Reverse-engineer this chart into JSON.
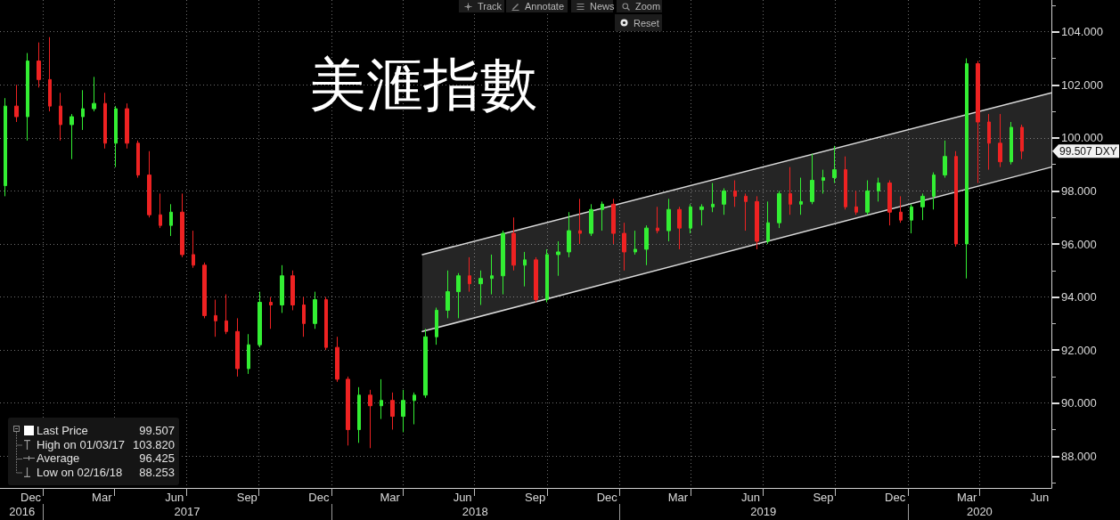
{
  "chart_data": {
    "type": "candlestick",
    "title": "美滙指數",
    "series": [
      {
        "x": [
          "2016-11-14",
          "2016-11-28",
          "2016-12-12",
          "2016-12-26",
          "2017-01-09",
          "2017-01-23",
          "2017-02-06",
          "2017-02-20",
          "2017-03-06",
          "2017-03-20",
          "2017-04-03",
          "2017-04-17",
          "2017-05-01",
          "2017-05-15",
          "2017-05-29",
          "2017-06-12",
          "2017-06-26",
          "2017-07-10",
          "2017-07-24",
          "2017-08-07",
          "2017-08-21",
          "2017-09-04",
          "2017-09-18",
          "2017-10-02",
          "2017-10-16",
          "2017-10-30",
          "2017-11-13",
          "2017-11-27",
          "2017-12-11",
          "2017-12-25",
          "2018-01-08",
          "2018-01-22",
          "2018-02-05",
          "2018-02-19",
          "2018-03-05",
          "2018-03-19",
          "2018-04-02",
          "2018-04-16",
          "2018-04-30",
          "2018-05-14",
          "2018-05-28",
          "2018-06-11",
          "2018-06-25",
          "2018-07-09",
          "2018-07-23",
          "2018-08-06",
          "2018-08-20",
          "2018-09-03",
          "2018-09-17",
          "2018-10-01",
          "2018-10-15",
          "2018-10-29",
          "2018-11-12",
          "2018-11-26",
          "2018-12-10",
          "2018-12-24",
          "2019-01-07",
          "2019-01-21",
          "2019-02-04",
          "2019-02-18",
          "2019-03-04",
          "2019-03-18",
          "2019-04-01",
          "2019-04-15",
          "2019-04-29",
          "2019-05-13",
          "2019-05-27",
          "2019-06-10",
          "2019-06-24",
          "2019-07-08",
          "2019-07-22",
          "2019-08-05",
          "2019-08-19",
          "2019-09-02",
          "2019-09-16",
          "2019-09-30",
          "2019-10-14",
          "2019-10-28",
          "2019-11-11",
          "2019-11-25",
          "2019-12-09",
          "2019-12-23",
          "2020-01-06",
          "2020-01-20",
          "2020-02-03",
          "2020-02-17",
          "2020-03-02",
          "2020-03-16",
          "2020-03-30",
          "2020-04-13",
          "2020-04-27",
          "2020-05-11",
          "2020-05-25"
        ],
        "ohlc": [
          [
            98.2,
            101.5,
            97.8,
            101.2
          ],
          [
            101.2,
            102.0,
            100.6,
            100.8
          ],
          [
            100.8,
            103.2,
            99.9,
            102.9
          ],
          [
            102.9,
            103.6,
            101.9,
            102.2
          ],
          [
            102.2,
            103.8,
            101.0,
            101.2
          ],
          [
            101.2,
            101.7,
            99.9,
            100.5
          ],
          [
            100.5,
            100.9,
            99.2,
            100.8
          ],
          [
            100.8,
            101.8,
            100.3,
            101.1
          ],
          [
            101.1,
            102.3,
            101.0,
            101.3
          ],
          [
            101.3,
            101.7,
            99.6,
            99.8
          ],
          [
            99.8,
            101.2,
            98.9,
            101.1
          ],
          [
            101.1,
            101.3,
            99.6,
            99.8
          ],
          [
            99.8,
            99.9,
            98.5,
            98.6
          ],
          [
            98.6,
            99.5,
            97.0,
            97.1
          ],
          [
            97.1,
            97.9,
            96.6,
            96.7
          ],
          [
            96.7,
            97.5,
            96.3,
            97.2
          ],
          [
            97.2,
            97.9,
            95.5,
            95.6
          ],
          [
            95.6,
            96.5,
            95.1,
            95.2
          ],
          [
            95.2,
            95.3,
            93.2,
            93.3
          ],
          [
            93.3,
            93.9,
            92.5,
            93.1
          ],
          [
            93.1,
            94.1,
            92.6,
            92.7
          ],
          [
            92.7,
            93.2,
            91.0,
            91.3
          ],
          [
            91.3,
            92.6,
            91.1,
            92.2
          ],
          [
            92.2,
            94.2,
            92.1,
            93.8
          ],
          [
            93.8,
            94.0,
            92.8,
            93.7
          ],
          [
            93.7,
            95.2,
            93.4,
            94.8
          ],
          [
            94.8,
            95.0,
            93.5,
            93.7
          ],
          [
            93.7,
            94.0,
            92.5,
            93.0
          ],
          [
            93.0,
            94.2,
            92.8,
            93.9
          ],
          [
            93.9,
            94.0,
            92.0,
            92.1
          ],
          [
            92.1,
            92.5,
            90.8,
            90.9
          ],
          [
            90.9,
            91.0,
            88.4,
            89.0
          ],
          [
            89.0,
            90.6,
            88.5,
            90.3
          ],
          [
            90.3,
            90.5,
            88.3,
            89.9
          ],
          [
            89.9,
            90.9,
            89.4,
            90.1
          ],
          [
            90.1,
            90.4,
            89.0,
            89.5
          ],
          [
            89.5,
            90.5,
            88.9,
            90.1
          ],
          [
            90.1,
            90.4,
            89.2,
            90.3
          ],
          [
            90.3,
            92.8,
            90.2,
            92.5
          ],
          [
            92.5,
            93.6,
            92.2,
            93.5
          ],
          [
            93.5,
            95.0,
            93.2,
            94.2
          ],
          [
            94.2,
            94.9,
            93.2,
            94.8
          ],
          [
            94.8,
            95.5,
            94.2,
            94.5
          ],
          [
            94.5,
            95.0,
            93.7,
            94.7
          ],
          [
            94.7,
            95.6,
            94.1,
            94.8
          ],
          [
            94.8,
            96.5,
            94.1,
            96.4
          ],
          [
            96.4,
            97.0,
            95.0,
            95.2
          ],
          [
            95.2,
            95.7,
            94.4,
            95.4
          ],
          [
            95.4,
            95.5,
            93.8,
            93.9
          ],
          [
            93.9,
            95.8,
            93.8,
            95.6
          ],
          [
            95.6,
            96.1,
            94.8,
            95.7
          ],
          [
            95.7,
            97.2,
            95.5,
            96.5
          ],
          [
            96.5,
            97.7,
            96.0,
            96.4
          ],
          [
            96.4,
            97.5,
            96.3,
            97.3
          ],
          [
            97.3,
            97.6,
            96.5,
            97.5
          ],
          [
            97.5,
            97.7,
            96.0,
            96.4
          ],
          [
            96.4,
            96.8,
            95.0,
            95.7
          ],
          [
            95.7,
            96.5,
            95.6,
            95.8
          ],
          [
            95.8,
            96.7,
            95.2,
            96.6
          ],
          [
            96.6,
            97.4,
            96.4,
            96.5
          ],
          [
            96.5,
            97.7,
            96.1,
            97.3
          ],
          [
            97.3,
            97.4,
            95.8,
            96.6
          ],
          [
            96.6,
            97.5,
            96.4,
            97.4
          ],
          [
            97.3,
            97.5,
            96.7,
            97.4
          ],
          [
            97.4,
            98.3,
            97.2,
            97.5
          ],
          [
            97.5,
            98.1,
            97.1,
            98.0
          ],
          [
            98.0,
            98.4,
            97.4,
            97.8
          ],
          [
            97.8,
            97.9,
            96.5,
            97.6
          ],
          [
            97.6,
            97.8,
            95.8,
            96.1
          ],
          [
            96.1,
            97.6,
            96.0,
            96.8
          ],
          [
            96.8,
            98.0,
            96.6,
            97.9
          ],
          [
            97.9,
            98.9,
            97.1,
            97.5
          ],
          [
            97.5,
            98.5,
            97.1,
            97.6
          ],
          [
            97.6,
            99.4,
            97.5,
            98.4
          ],
          [
            98.4,
            98.8,
            97.9,
            98.5
          ],
          [
            98.5,
            99.7,
            98.3,
            98.8
          ],
          [
            98.8,
            99.3,
            97.3,
            97.4
          ],
          [
            97.4,
            98.0,
            97.1,
            97.2
          ],
          [
            97.2,
            98.4,
            97.1,
            98.0
          ],
          [
            98.0,
            98.5,
            97.6,
            98.3
          ],
          [
            98.3,
            98.4,
            96.7,
            97.2
          ],
          [
            97.2,
            97.8,
            96.8,
            96.9
          ],
          [
            96.9,
            97.5,
            96.4,
            97.4
          ],
          [
            97.4,
            97.9,
            96.9,
            97.8
          ],
          [
            97.8,
            98.7,
            97.3,
            98.6
          ],
          [
            98.6,
            99.9,
            98.5,
            99.3
          ],
          [
            99.3,
            99.5,
            95.9,
            96.0
          ],
          [
            96.0,
            103.0,
            94.7,
            102.8
          ],
          [
            102.8,
            102.9,
            98.3,
            100.6
          ],
          [
            100.6,
            100.9,
            98.8,
            99.8
          ],
          [
            99.8,
            100.9,
            98.9,
            99.1
          ],
          [
            99.1,
            100.6,
            99.0,
            100.4
          ],
          [
            100.4,
            100.5,
            99.2,
            99.5
          ]
        ],
        "colors": [
          "#33ee33",
          "#ee2222",
          "#33ee33",
          "#ee2222",
          "#ee2222",
          "#ee2222",
          "#33ee33",
          "#33ee33",
          "#33ee33",
          "#ee2222",
          "#33ee33",
          "#ee2222",
          "#ee2222",
          "#ee2222",
          "#ee2222",
          "#33ee33",
          "#ee2222",
          "#ee2222",
          "#ee2222",
          "#ee2222",
          "#ee2222",
          "#ee2222",
          "#33ee33",
          "#33ee33",
          "#ee2222",
          "#33ee33",
          "#ee2222",
          "#ee2222",
          "#33ee33",
          "#ee2222",
          "#ee2222",
          "#ee2222",
          "#33ee33",
          "#ee2222",
          "#33ee33",
          "#ee2222",
          "#33ee33",
          "#33ee33",
          "#33ee33",
          "#33ee33",
          "#33ee33",
          "#33ee33",
          "#ee2222",
          "#33ee33",
          "#33ee33",
          "#33ee33",
          "#ee2222",
          "#33ee33",
          "#ee2222",
          "#33ee33",
          "#33ee33",
          "#33ee33",
          "#ee2222",
          "#33ee33",
          "#33ee33",
          "#ee2222",
          "#ee2222",
          "#33ee33",
          "#33ee33",
          "#ee2222",
          "#33ee33",
          "#ee2222",
          "#33ee33",
          "#33ee33",
          "#33ee33",
          "#33ee33",
          "#ee2222",
          "#ee2222",
          "#ee2222",
          "#33ee33",
          "#33ee33",
          "#ee2222",
          "#33ee33",
          "#33ee33",
          "#33ee33",
          "#33ee33",
          "#ee2222",
          "#ee2222",
          "#33ee33",
          "#33ee33",
          "#ee2222",
          "#ee2222",
          "#33ee33",
          "#33ee33",
          "#33ee33",
          "#33ee33",
          "#ee2222",
          "#33ee33",
          "#ee2222",
          "#ee2222",
          "#ee2222",
          "#33ee33",
          "#ee2222"
        ]
      },
      {
        "type": "line",
        "color": "#d9d9d9",
        "x": [
          "2018-04-26",
          "2020-07-01"
        ],
        "values": [
          95.6,
          101.7
        ],
        "lower": [
          92.7,
          98.9
        ],
        "upper": [
          95.6,
          101.7
        ]
      },
      {
        "type": "line",
        "color": "#d9d9d9",
        "x": [
          "2018-04-26",
          "2020-07-01"
        ],
        "values": [
          92.7,
          98.9
        ]
      }
    ],
    "xlim": [
      "2016-11-07",
      "2020-07-01"
    ],
    "xticks": [
      {
        "value": "2016-12-16",
        "label": "Dec"
      },
      {
        "value": "2017-01-01",
        "label": null
      },
      {
        "value": "2017-03-16",
        "label": "Mar"
      },
      {
        "value": "2017-04-01",
        "label": null
      },
      {
        "value": "2017-06-16",
        "label": "Jun"
      },
      {
        "value": "2017-07-01",
        "label": null
      },
      {
        "value": "2017-09-16",
        "label": "Sep"
      },
      {
        "value": "2017-10-01",
        "label": null
      },
      {
        "value": "2017-12-16",
        "label": "Dec"
      },
      {
        "value": "2018-01-01",
        "label": null
      },
      {
        "value": "2018-03-16",
        "label": "Mar"
      },
      {
        "value": "2018-04-01",
        "label": null
      },
      {
        "value": "2018-06-16",
        "label": "Jun"
      },
      {
        "value": "2018-07-01",
        "label": null
      },
      {
        "value": "2018-09-16",
        "label": "Sep"
      },
      {
        "value": "2018-10-01",
        "label": null
      },
      {
        "value": "2018-12-16",
        "label": "Dec"
      },
      {
        "value": "2019-01-01",
        "label": null
      },
      {
        "value": "2019-03-16",
        "label": "Mar"
      },
      {
        "value": "2019-04-01",
        "label": null
      },
      {
        "value": "2019-06-16",
        "label": "Jun"
      },
      {
        "value": "2019-07-01",
        "label": null
      },
      {
        "value": "2019-09-16",
        "label": "Sep"
      },
      {
        "value": "2019-10-01",
        "label": null
      },
      {
        "value": "2019-12-16",
        "label": "Dec"
      },
      {
        "value": "2020-01-01",
        "label": null
      },
      {
        "value": "2020-03-16",
        "label": "Mar"
      },
      {
        "value": "2020-04-01",
        "label": null
      },
      {
        "value": "2020-06-16",
        "label": "Jun"
      }
    ],
    "x2lim": [
      "2016-11-07",
      "2020-07-01"
    ],
    "x2ticks": [
      {
        "value": "2016-12-05",
        "label": "2016"
      },
      {
        "value": "2017-01-01",
        "label": null
      },
      {
        "value": "2017-07-02",
        "label": "2017"
      },
      {
        "value": "2018-01-01",
        "label": null
      },
      {
        "value": "2018-07-02",
        "label": "2018"
      },
      {
        "value": "2019-01-01",
        "label": null
      },
      {
        "value": "2019-07-02",
        "label": "2019"
      },
      {
        "value": "2020-01-01",
        "label": null
      },
      {
        "value": "2020-04-01",
        "label": "2020"
      }
    ],
    "ylim": [
      86.8,
      105.2
    ],
    "yticks": [
      {
        "value": 87,
        "label": null
      },
      {
        "value": 88,
        "label": "88.000"
      },
      {
        "value": 89,
        "label": null
      },
      {
        "value": 90,
        "label": "90.000"
      },
      {
        "value": 91,
        "label": null
      },
      {
        "value": 92,
        "label": "92.000"
      },
      {
        "value": 93,
        "label": null
      },
      {
        "value": 94,
        "label": "94.000"
      },
      {
        "value": 95,
        "label": null
      },
      {
        "value": 96,
        "label": "96.000"
      },
      {
        "value": 97,
        "label": null
      },
      {
        "value": 98,
        "label": "98.000"
      },
      {
        "value": 99,
        "label": null
      },
      {
        "value": 100,
        "label": "100.000"
      },
      {
        "value": 101,
        "label": null
      },
      {
        "value": 102,
        "label": "102.000"
      },
      {
        "value": 103,
        "label": null
      },
      {
        "value": 104,
        "label": "104.000"
      },
      {
        "value": 105,
        "label": null
      }
    ],
    "grid": true,
    "annotations": [
      "Track",
      "Annotate",
      "News",
      "Zoom",
      "Reset",
      "Last Price",
      "99.507",
      "High on 01/03/17",
      "103.820",
      "Average",
      "96.425",
      "Low on 02/16/18",
      "88.253",
      "99.507 DXY"
    ]
  }
}
